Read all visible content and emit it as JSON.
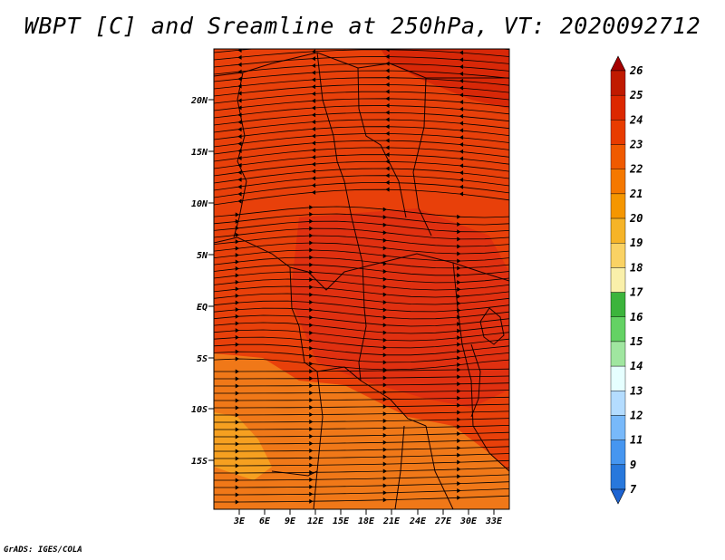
{
  "title": "WBPT [C] and Sreamline at 250hPa, VT: 2020092712",
  "footer": "GrADS: IGES/COLA",
  "lat_ticks": [
    "20N",
    "15N",
    "10N",
    "5N",
    "EQ",
    "5S",
    "10S",
    "15S"
  ],
  "lon_ticks": [
    "3E",
    "6E",
    "9E",
    "12E",
    "15E",
    "18E",
    "21E",
    "24E",
    "27E",
    "30E",
    "33E"
  ],
  "colorbar": {
    "labels": [
      "26",
      "25",
      "24",
      "23",
      "22",
      "21",
      "20",
      "19",
      "18",
      "17",
      "16",
      "15",
      "14",
      "13",
      "12",
      "11",
      "9",
      "7"
    ],
    "colors": [
      "#a50000",
      "#c01a00",
      "#dc2800",
      "#e83c00",
      "#f05a00",
      "#f57800",
      "#f59600",
      "#f6b428",
      "#fad264",
      "#faf0aa",
      "#3cb43c",
      "#64d264",
      "#a0e6a0",
      "#e6ffff",
      "#b4dcff",
      "#78b9fa",
      "#4696f0",
      "#2878dc",
      "#1e64d2"
    ]
  },
  "map_colors": {
    "dominant": "#e8400a",
    "light": "#f07818",
    "lighter": "#f6a020",
    "dark": "#d82808"
  }
}
